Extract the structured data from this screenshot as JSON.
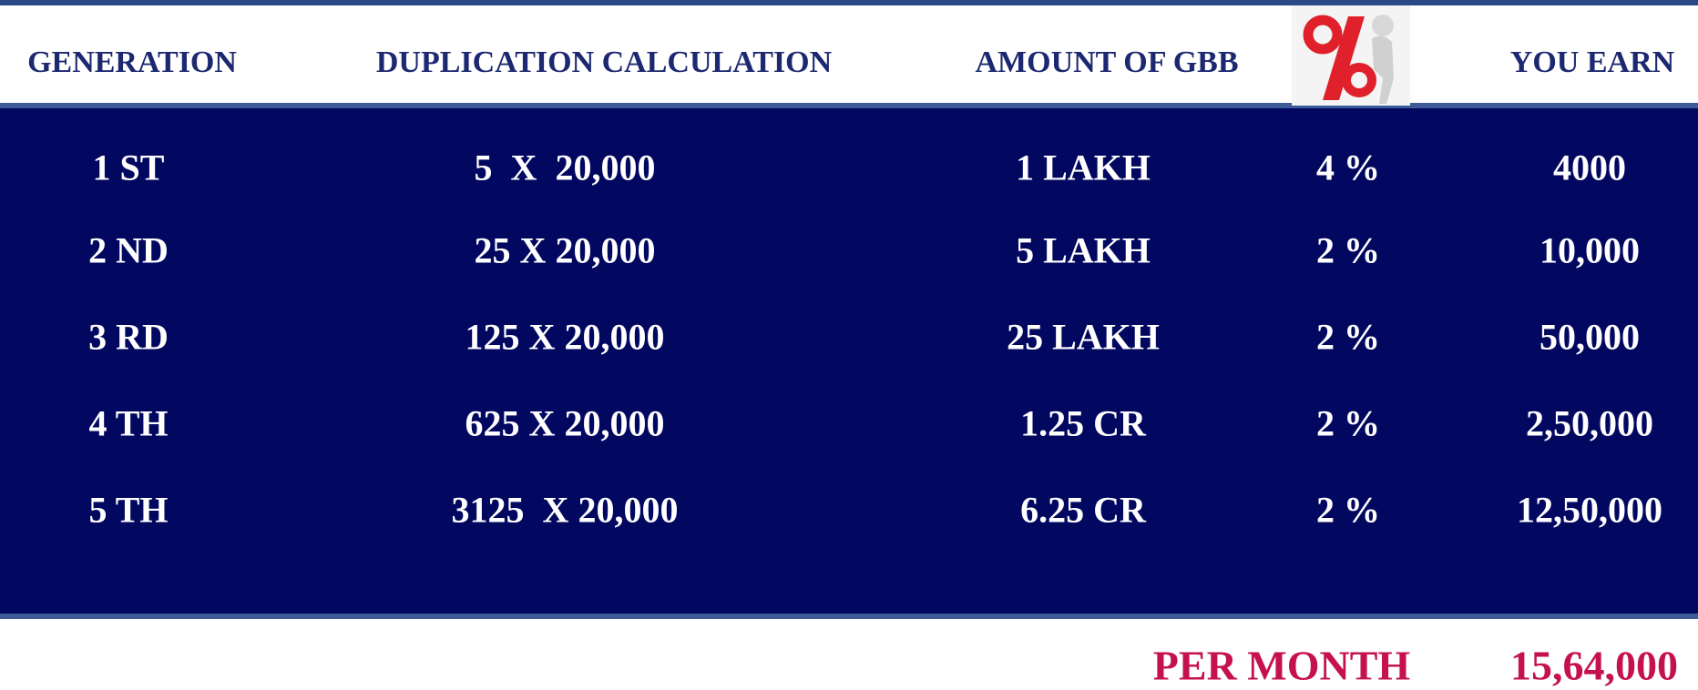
{
  "table": {
    "headers": [
      "GENERATION",
      "DUPLICATION CALCULATION",
      "AMOUNT OF GBB",
      "YOU EARN"
    ],
    "rows": [
      [
        "1 ST",
        "5  X  20,000",
        "1 LAKH",
        "4 %",
        "4000"
      ],
      [
        "2 ND",
        "25 X 20,000",
        "5 LAKH",
        "2 %",
        "10,000"
      ],
      [
        "3 RD",
        "125 X 20,000",
        "25 LAKH",
        "2 %",
        "50,000"
      ],
      [
        "4 TH",
        "625 X 20,000",
        "1.25 CR",
        "2 %",
        "2,50,000"
      ],
      [
        "5 TH",
        "3125  X 20,000",
        "6.25 CR",
        "2 %",
        "12,50,000"
      ]
    ],
    "total": {
      "label": "PER MONTH",
      "value": "15,64,000"
    }
  }
}
